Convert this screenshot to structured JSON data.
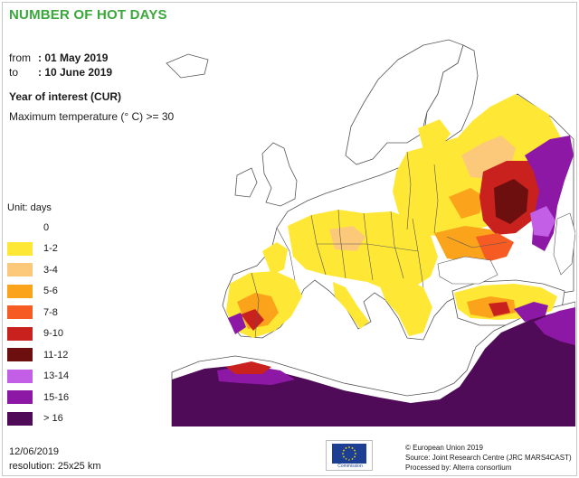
{
  "header": {
    "title": "NUMBER OF HOT DAYS",
    "from_label": "from",
    "from_value": ": 01 May 2019",
    "to_label": "to",
    "to_value": ": 10 June 2019",
    "year_of_interest": "Year of interest (CUR)",
    "parameter": "Maximum temperature (° C) >= 30"
  },
  "legend": {
    "unit": "Unit: days",
    "items": [
      {
        "label": "0",
        "color": "#ffffff"
      },
      {
        "label": "1-2",
        "color": "#ffe736"
      },
      {
        "label": "3-4",
        "color": "#fcc97a"
      },
      {
        "label": "5-6",
        "color": "#fba31a"
      },
      {
        "label": "7-8",
        "color": "#f55b22"
      },
      {
        "label": "9-10",
        "color": "#c8211e"
      },
      {
        "label": "11-12",
        "color": "#6e0f0f"
      },
      {
        "label": "13-14",
        "color": "#c35ee6"
      },
      {
        "label": "15-16",
        "color": "#8e18a6"
      },
      {
        "label": "> 16",
        "color": "#4f0b57"
      }
    ]
  },
  "footer": {
    "date": "12/06/2019",
    "resolution": "resolution:  25x25 km",
    "eu_logo_text": "European Commission",
    "credits": [
      "© European Union 2019",
      "Source: Joint Research Centre (JRC MARS4CAST)",
      "Processed by: Alterra consortium"
    ]
  },
  "colors": {
    "title": "#3aa83a",
    "land": "#ffffff",
    "border": "#555555",
    "eu_blue": "#1c3f94",
    "eu_star": "#ffdd00"
  }
}
